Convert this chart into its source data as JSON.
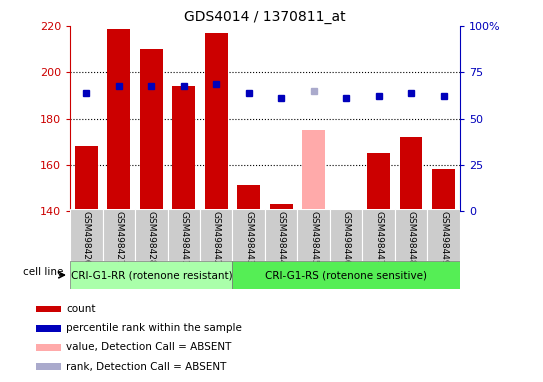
{
  "title": "GDS4014 / 1370811_at",
  "samples": [
    "GSM498426",
    "GSM498427",
    "GSM498428",
    "GSM498441",
    "GSM498442",
    "GSM498443",
    "GSM498444",
    "GSM498445",
    "GSM498446",
    "GSM498447",
    "GSM498448",
    "GSM498449"
  ],
  "count_values": [
    168,
    219,
    210,
    194,
    217,
    151,
    143,
    null,
    140,
    165,
    172,
    158
  ],
  "count_absent_values": [
    null,
    null,
    null,
    null,
    null,
    null,
    null,
    175,
    null,
    null,
    null,
    null
  ],
  "rank_values": [
    191,
    194,
    194,
    194,
    195,
    191,
    189,
    null,
    189,
    190,
    191,
    190
  ],
  "rank_absent_values": [
    null,
    null,
    null,
    null,
    null,
    null,
    null,
    192,
    null,
    null,
    null,
    null
  ],
  "ylim": [
    140,
    220
  ],
  "y2lim": [
    0,
    100
  ],
  "yticks": [
    140,
    160,
    180,
    200,
    220
  ],
  "y2ticks": [
    0,
    25,
    50,
    75,
    100
  ],
  "y2ticklabels": [
    "0",
    "25",
    "50",
    "75",
    "100%"
  ],
  "group1_label": "CRI-G1-RR (rotenone resistant)",
  "group2_label": "CRI-G1-RS (rotenone sensitive)",
  "group1_indices": [
    0,
    1,
    2,
    3,
    4
  ],
  "group2_indices": [
    5,
    6,
    7,
    8,
    9,
    10,
    11
  ],
  "cell_line_label": "cell line",
  "bar_color": "#cc0000",
  "bar_absent_color": "#ffaaaa",
  "dot_color": "#0000bb",
  "dot_absent_color": "#aaaacc",
  "group1_bg": "#aaffaa",
  "group2_bg": "#55ee55",
  "tick_area_bg": "#cccccc",
  "legend_items": [
    {
      "color": "#cc0000",
      "label": "count"
    },
    {
      "color": "#0000bb",
      "label": "percentile rank within the sample"
    },
    {
      "color": "#ffaaaa",
      "label": "value, Detection Call = ABSENT"
    },
    {
      "color": "#aaaacc",
      "label": "rank, Detection Call = ABSENT"
    }
  ]
}
